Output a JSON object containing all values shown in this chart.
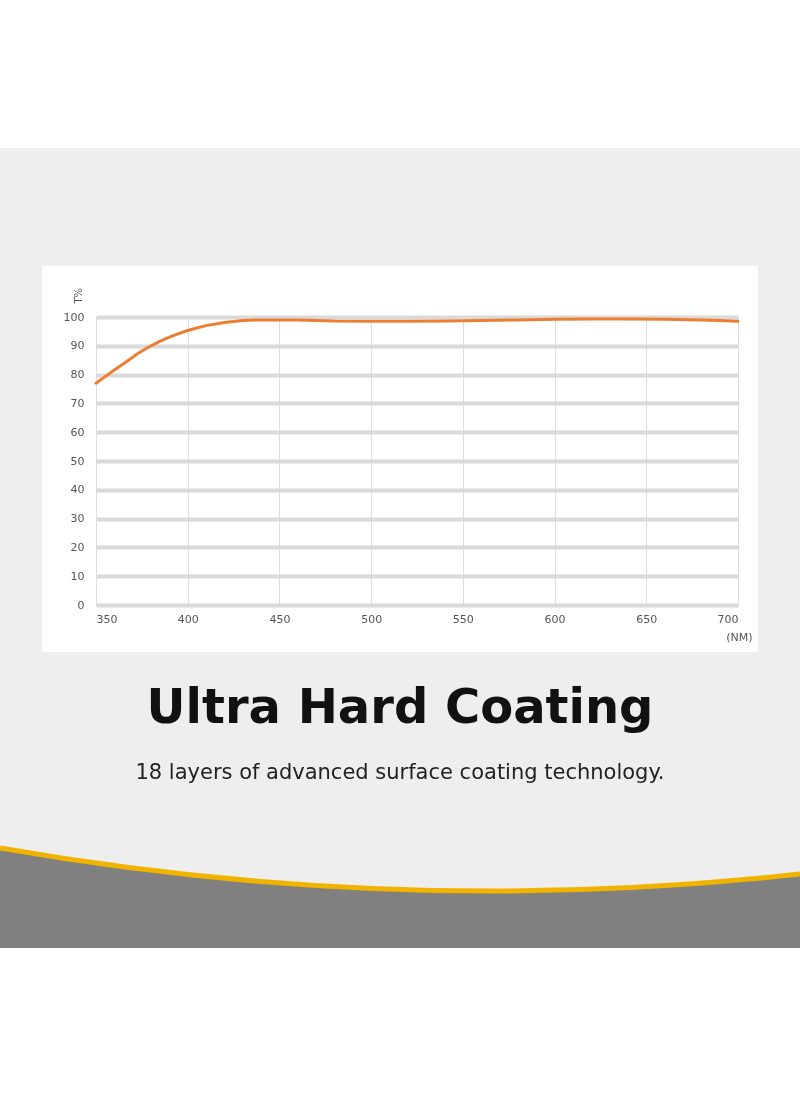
{
  "chart_data": {
    "type": "line",
    "title": "Ultra Hard Coating",
    "subtitle": "18 layers of advanced surface coating technology.",
    "xlabel": "(NM)",
    "ylabel": "T%",
    "x": [
      350,
      355,
      360,
      365,
      370,
      372,
      375,
      380,
      385,
      390,
      395,
      400,
      405,
      410,
      420,
      430,
      440,
      450,
      460,
      470,
      480,
      500,
      520,
      540,
      560,
      580,
      600,
      620,
      640,
      660,
      680,
      690,
      700
    ],
    "series": [
      {
        "color": "#ed7d31",
        "values": [
          77,
          79.3,
          81.6,
          83.8,
          86,
          87,
          88.2,
          90,
          91.6,
          93,
          94.2,
          95.3,
          96.2,
          97,
          98.1,
          98.8,
          99,
          99,
          99,
          98.8,
          98.6,
          98.5,
          98.5,
          98.6,
          98.8,
          99,
          99.2,
          99.3,
          99.3,
          99.2,
          99,
          98.8,
          98.5
        ]
      }
    ],
    "xlim": [
      350,
      700
    ],
    "xticks": [
      350,
      400,
      450,
      500,
      550,
      600,
      650,
      700
    ],
    "ylim": [
      0,
      100
    ],
    "yticks": [
      0,
      10,
      20,
      30,
      40,
      50,
      60,
      70,
      80,
      90,
      100
    ],
    "grid": true,
    "marker": "none",
    "line_style": "solid"
  }
}
